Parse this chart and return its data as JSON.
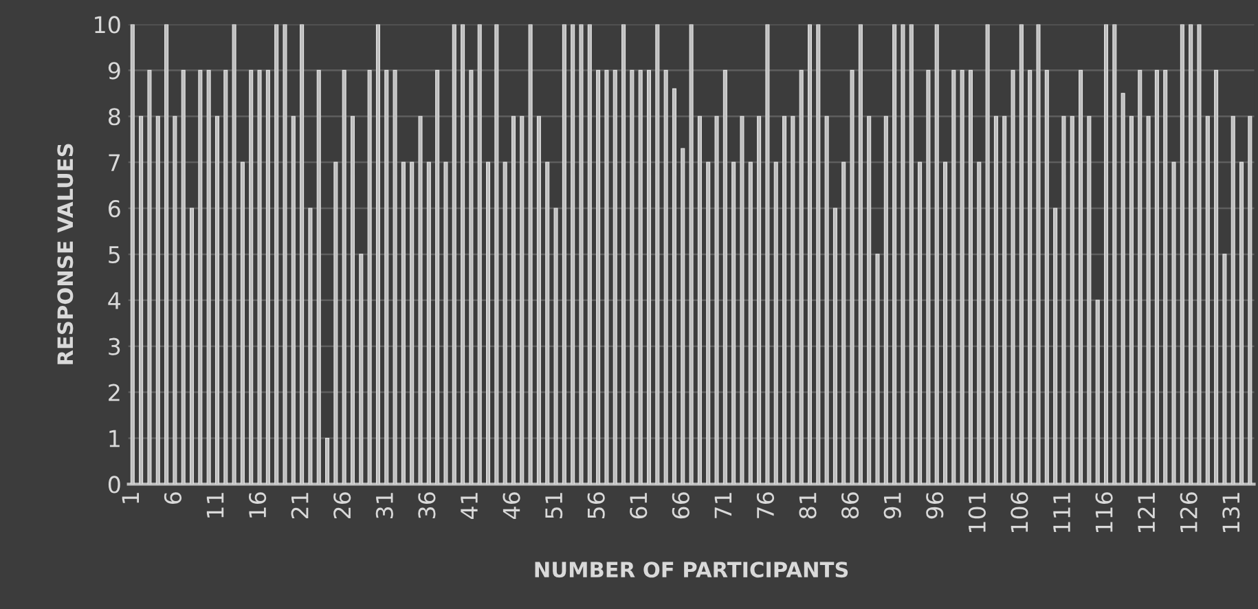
{
  "chart_data": {
    "type": "bar",
    "xlabel": "NUMBER OF PARTICIPANTS",
    "ylabel": "RESPONSE VALUES",
    "categories": [
      "1",
      null,
      null,
      null,
      null,
      "6",
      null,
      null,
      null,
      null,
      "11",
      null,
      null,
      null,
      null,
      "16",
      null,
      null,
      null,
      null,
      "21",
      null,
      null,
      null,
      null,
      "26",
      null,
      null,
      null,
      null,
      "31",
      null,
      null,
      null,
      null,
      "36",
      null,
      null,
      null,
      null,
      "41",
      null,
      null,
      null,
      null,
      "46",
      null,
      null,
      null,
      null,
      "51",
      null,
      null,
      null,
      null,
      "56",
      null,
      null,
      null,
      null,
      "61",
      null,
      null,
      null,
      null,
      "66",
      null,
      null,
      null,
      null,
      "71",
      null,
      null,
      null,
      null,
      "76",
      null,
      null,
      null,
      null,
      "81",
      null,
      null,
      null,
      null,
      "86",
      null,
      null,
      null,
      null,
      "91",
      null,
      null,
      null,
      null,
      "96",
      null,
      null,
      null,
      null,
      "101",
      null,
      null,
      null,
      null,
      "106",
      null,
      null,
      null,
      null,
      "111",
      null,
      null,
      null,
      null,
      "116",
      null,
      null,
      null,
      null,
      "121",
      null,
      null,
      null,
      null,
      "126",
      null,
      null,
      null,
      null,
      "131",
      null,
      null
    ],
    "values": [
      10,
      8,
      9,
      8,
      10,
      8,
      9,
      6,
      9,
      9,
      8,
      9,
      10,
      7,
      9,
      9,
      9,
      10,
      10,
      8,
      10,
      6,
      9,
      1,
      7,
      9,
      8,
      5,
      9,
      10,
      9,
      9,
      7,
      7,
      8,
      7,
      9,
      7,
      10,
      10,
      9,
      10,
      7,
      10,
      7,
      8,
      8,
      10,
      8,
      7,
      6,
      10,
      10,
      10,
      10,
      9,
      9,
      9,
      10,
      9,
      9,
      9,
      10,
      9,
      8.6,
      7.3,
      10,
      8,
      7,
      8,
      9,
      7,
      8,
      7,
      8,
      10,
      7,
      8,
      8,
      9,
      10,
      10,
      8,
      6,
      7,
      9,
      10,
      8,
      5,
      8,
      10,
      10,
      10,
      7,
      9,
      10,
      7,
      9,
      9,
      9,
      7,
      10,
      8,
      8,
      9,
      10,
      9,
      10,
      9,
      6,
      8,
      8,
      9,
      8,
      4,
      10,
      10,
      8.5,
      8,
      9,
      8,
      9,
      9,
      7,
      10,
      10,
      10,
      8,
      9,
      5,
      8,
      7,
      8
    ],
    "color": "#bfbfbf",
    "ylim": [
      0,
      10
    ],
    "yticks": [
      0,
      1,
      2,
      3,
      4,
      5,
      6,
      7,
      8,
      9,
      10
    ],
    "grid": "y"
  }
}
